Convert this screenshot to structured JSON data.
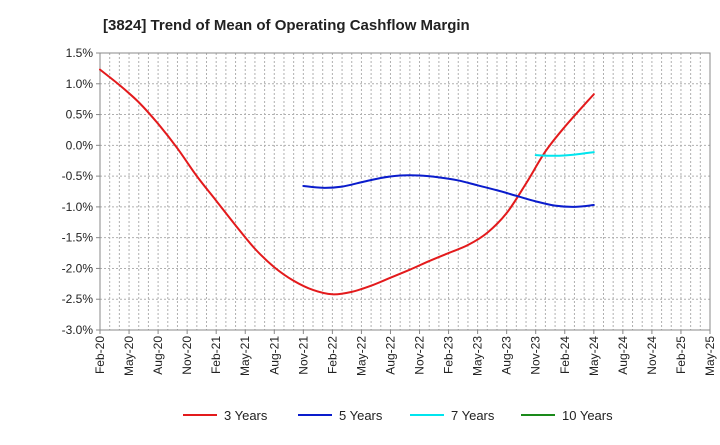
{
  "chart_data": {
    "type": "line",
    "title": "[3824]  Trend of Mean of Operating Cashflow Margin",
    "xlabel": "",
    "ylabel": "",
    "ylim": [
      -3.0,
      1.5
    ],
    "y_ticks": [
      1.5,
      1.0,
      0.5,
      0.0,
      -0.5,
      -1.0,
      -1.5,
      -2.0,
      -2.5,
      -3.0
    ],
    "y_tick_labels": [
      "1.5%",
      "1.0%",
      "0.5%",
      "0.0%",
      "-0.5%",
      "-1.0%",
      "-1.5%",
      "-2.0%",
      "-2.5%",
      "-3.0%"
    ],
    "x_tick_labels": [
      "Feb-20",
      "May-20",
      "Aug-20",
      "Nov-20",
      "Feb-21",
      "May-21",
      "Aug-21",
      "Nov-21",
      "Feb-22",
      "May-22",
      "Aug-22",
      "Nov-22",
      "Feb-23",
      "May-23",
      "Aug-23",
      "Nov-23",
      "Feb-24",
      "May-24",
      "Aug-24",
      "Nov-24",
      "Feb-25",
      "May-25"
    ],
    "x_range": [
      "Feb-20",
      "May-25"
    ],
    "grid": true,
    "legend_position": "bottom",
    "series": [
      {
        "name": "3 Years",
        "color": "#e31a1c",
        "points": [
          [
            "Feb-20",
            1.23
          ],
          [
            "Apr-20",
            0.98
          ],
          [
            "Jun-20",
            0.7
          ],
          [
            "Aug-20",
            0.35
          ],
          [
            "Oct-20",
            -0.05
          ],
          [
            "Dec-20",
            -0.5
          ],
          [
            "Feb-21",
            -0.9
          ],
          [
            "Apr-21",
            -1.3
          ],
          [
            "Jun-21",
            -1.68
          ],
          [
            "Aug-21",
            -1.98
          ],
          [
            "Oct-21",
            -2.2
          ],
          [
            "Dec-21",
            -2.35
          ],
          [
            "Feb-22",
            -2.42
          ],
          [
            "Apr-22",
            -2.38
          ],
          [
            "Jun-22",
            -2.28
          ],
          [
            "Aug-22",
            -2.15
          ],
          [
            "Oct-22",
            -2.02
          ],
          [
            "Dec-22",
            -1.88
          ],
          [
            "Feb-23",
            -1.75
          ],
          [
            "Apr-23",
            -1.62
          ],
          [
            "Jun-23",
            -1.42
          ],
          [
            "Aug-23",
            -1.1
          ],
          [
            "Oct-23",
            -0.62
          ],
          [
            "Dec-23",
            -0.1
          ],
          [
            "Feb-24",
            0.3
          ],
          [
            "May-24",
            0.83
          ]
        ]
      },
      {
        "name": "5 Years",
        "color": "#0a1ccc",
        "points": [
          [
            "Nov-21",
            -0.66
          ],
          [
            "Jan-22",
            -0.69
          ],
          [
            "Mar-22",
            -0.67
          ],
          [
            "May-22",
            -0.6
          ],
          [
            "Jul-22",
            -0.53
          ],
          [
            "Sep-22",
            -0.49
          ],
          [
            "Nov-22",
            -0.49
          ],
          [
            "Jan-23",
            -0.52
          ],
          [
            "Mar-23",
            -0.57
          ],
          [
            "May-23",
            -0.65
          ],
          [
            "Jul-23",
            -0.73
          ],
          [
            "Sep-23",
            -0.82
          ],
          [
            "Nov-23",
            -0.91
          ],
          [
            "Jan-24",
            -0.98
          ],
          [
            "Mar-24",
            -1.0
          ],
          [
            "May-24",
            -0.97
          ]
        ]
      },
      {
        "name": "7 Years",
        "color": "#00e5ee",
        "points": [
          [
            "Nov-23",
            -0.16
          ],
          [
            "Jan-24",
            -0.17
          ],
          [
            "Mar-24",
            -0.15
          ],
          [
            "May-24",
            -0.11
          ]
        ]
      },
      {
        "name": "10 Years",
        "color": "#1a8a1a",
        "points": []
      }
    ]
  }
}
